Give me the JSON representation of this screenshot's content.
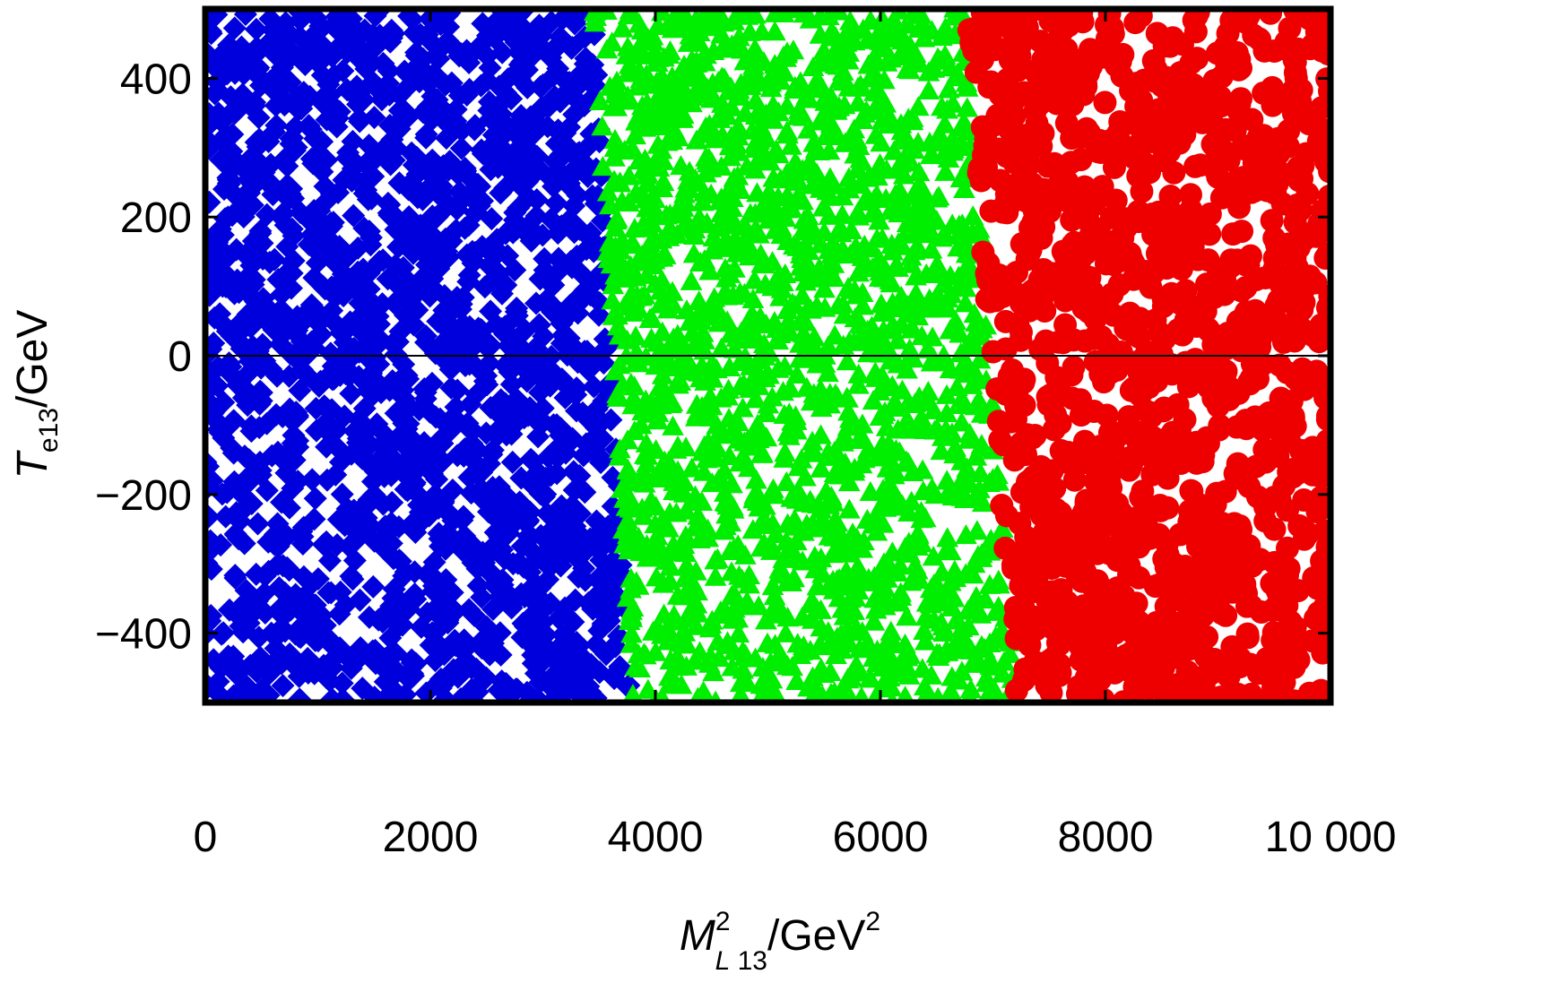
{
  "chart_data": {
    "type": "scatter",
    "title": "",
    "xlabel": "M^2_{L̃ 13}/GeV^2",
    "ylabel": "T_{e13}/GeV",
    "xlabel_parts": {
      "main": "M",
      "sup": "2",
      "sub_tilde": "L",
      "sub_tail": " 13",
      "tail": "/GeV",
      "tail_sup": "2"
    },
    "ylabel_parts": {
      "main": "T",
      "sub": "e13",
      "tail": "/GeV"
    },
    "xlim": [
      0,
      10000
    ],
    "ylim": [
      -500,
      500
    ],
    "x_ticks": [
      0,
      2000,
      4000,
      6000,
      8000,
      10000
    ],
    "x_tick_labels": [
      "0",
      "2000",
      "4000",
      "6000",
      "8000",
      "10 000"
    ],
    "y_ticks": [
      -400,
      -200,
      0,
      200,
      400
    ],
    "y_tick_labels": [
      "−400",
      "−200",
      "0",
      "200",
      "400"
    ],
    "zero_line": true,
    "grid": false,
    "series": [
      {
        "marker": "diamond",
        "color": "#0000dd",
        "region": {
          "x_min": 0,
          "x_at_y_max": 3450,
          "x_at_y_min": 3800
        },
        "approx_point_count": 1900
      },
      {
        "marker": "triangle",
        "color": "#00ee00",
        "region": {
          "x_min_at_y_max": 3450,
          "x_min_at_y_min": 3800,
          "x_max_at_y_max": 6750,
          "x_max_at_y_min": 7200
        },
        "approx_point_count": 1900
      },
      {
        "marker": "circle",
        "color": "#ee0000",
        "region": {
          "x_min_at_y_max": 6750,
          "x_min_at_y_min": 7200,
          "x_max": 10000
        },
        "approx_point_count": 1300
      }
    ]
  }
}
